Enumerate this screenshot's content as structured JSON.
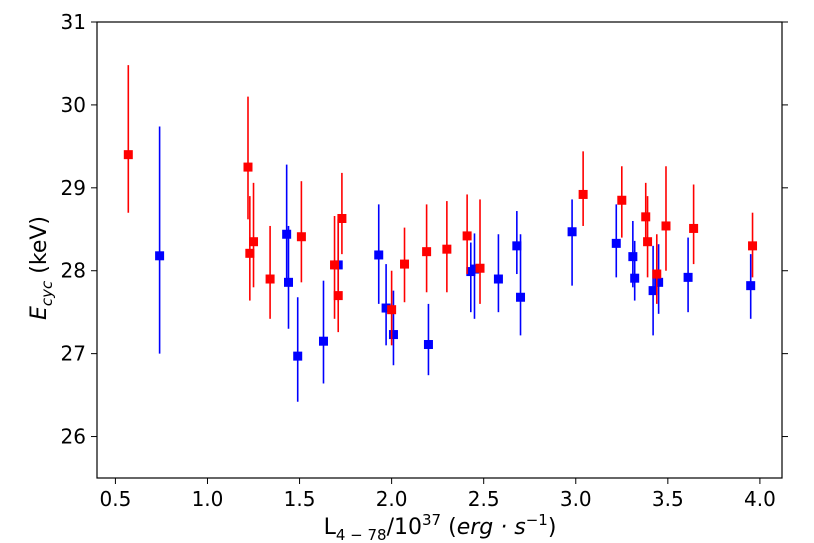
{
  "chart_data": {
    "type": "scatter",
    "xlabel_parts": [
      "L",
      "4 − 78",
      "/10",
      "37",
      " (",
      "erg · s",
      "−1",
      ")"
    ],
    "ylabel_parts": [
      "E",
      "cyc",
      " (keV)"
    ],
    "xlim": [
      0.4,
      4.12
    ],
    "ylim": [
      25.5,
      31.0
    ],
    "xticks": [
      0.5,
      1.0,
      1.5,
      2.0,
      2.5,
      3.0,
      3.5,
      4.0
    ],
    "xtick_labels": [
      "0.5",
      "1.0",
      "1.5",
      "2.0",
      "2.5",
      "3.0",
      "3.5",
      "4.0"
    ],
    "yticks": [
      26,
      27,
      28,
      29,
      30,
      31
    ],
    "ytick_labels": [
      "26",
      "27",
      "28",
      "29",
      "30",
      "31"
    ],
    "grid": false,
    "series": [
      {
        "color": "#0000ff",
        "marker": "square",
        "points": [
          {
            "x": 0.74,
            "y": 28.18,
            "ylo": 27.0,
            "yhi": 29.74
          },
          {
            "x": 1.43,
            "y": 28.44,
            "ylo": 27.9,
            "yhi": 29.28
          },
          {
            "x": 1.44,
            "y": 27.86,
            "ylo": 27.3,
            "yhi": 28.54
          },
          {
            "x": 1.49,
            "y": 26.97,
            "ylo": 26.42,
            "yhi": 27.68
          },
          {
            "x": 1.63,
            "y": 27.15,
            "ylo": 26.64,
            "yhi": 27.88
          },
          {
            "x": 1.71,
            "y": 28.07,
            "ylo": 27.62,
            "yhi": 28.58
          },
          {
            "x": 1.93,
            "y": 28.19,
            "ylo": 27.6,
            "yhi": 28.8
          },
          {
            "x": 1.97,
            "y": 27.55,
            "ylo": 27.1,
            "yhi": 28.08
          },
          {
            "x": 2.01,
            "y": 27.23,
            "ylo": 26.86,
            "yhi": 27.76
          },
          {
            "x": 2.2,
            "y": 27.11,
            "ylo": 26.74,
            "yhi": 27.6
          },
          {
            "x": 2.43,
            "y": 27.99,
            "ylo": 27.5,
            "yhi": 28.34
          },
          {
            "x": 2.45,
            "y": 28.02,
            "ylo": 27.42,
            "yhi": 28.45
          },
          {
            "x": 2.58,
            "y": 27.9,
            "ylo": 27.5,
            "yhi": 28.44
          },
          {
            "x": 2.68,
            "y": 28.3,
            "ylo": 27.96,
            "yhi": 28.72
          },
          {
            "x": 2.7,
            "y": 27.68,
            "ylo": 27.22,
            "yhi": 28.44
          },
          {
            "x": 2.98,
            "y": 28.47,
            "ylo": 27.82,
            "yhi": 28.86
          },
          {
            "x": 3.22,
            "y": 28.33,
            "ylo": 27.92,
            "yhi": 28.8
          },
          {
            "x": 3.31,
            "y": 28.17,
            "ylo": 27.8,
            "yhi": 28.6
          },
          {
            "x": 3.32,
            "y": 27.91,
            "ylo": 27.64,
            "yhi": 28.36
          },
          {
            "x": 3.42,
            "y": 27.76,
            "ylo": 27.22,
            "yhi": 28.3
          },
          {
            "x": 3.45,
            "y": 27.86,
            "ylo": 27.48,
            "yhi": 28.32
          },
          {
            "x": 3.61,
            "y": 27.92,
            "ylo": 27.5,
            "yhi": 28.4
          },
          {
            "x": 3.95,
            "y": 27.82,
            "ylo": 27.42,
            "yhi": 28.2
          }
        ]
      },
      {
        "color": "#ff0000",
        "marker": "square",
        "points": [
          {
            "x": 0.57,
            "y": 29.4,
            "ylo": 28.7,
            "yhi": 30.48
          },
          {
            "x": 1.22,
            "y": 29.25,
            "ylo": 28.62,
            "yhi": 30.1
          },
          {
            "x": 1.23,
            "y": 28.21,
            "ylo": 27.64,
            "yhi": 28.9
          },
          {
            "x": 1.25,
            "y": 28.35,
            "ylo": 27.8,
            "yhi": 29.06
          },
          {
            "x": 1.34,
            "y": 27.9,
            "ylo": 27.42,
            "yhi": 28.54
          },
          {
            "x": 1.51,
            "y": 28.41,
            "ylo": 27.86,
            "yhi": 29.08
          },
          {
            "x": 1.69,
            "y": 28.07,
            "ylo": 27.42,
            "yhi": 28.66
          },
          {
            "x": 1.71,
            "y": 27.7,
            "ylo": 27.26,
            "yhi": 28.62
          },
          {
            "x": 1.73,
            "y": 28.63,
            "ylo": 28.2,
            "yhi": 29.18
          },
          {
            "x": 2.0,
            "y": 27.53,
            "ylo": 27.1,
            "yhi": 28.0
          },
          {
            "x": 2.07,
            "y": 28.08,
            "ylo": 27.62,
            "yhi": 28.52
          },
          {
            "x": 2.19,
            "y": 28.23,
            "ylo": 27.74,
            "yhi": 28.8
          },
          {
            "x": 2.3,
            "y": 28.26,
            "ylo": 27.74,
            "yhi": 28.84
          },
          {
            "x": 2.41,
            "y": 28.42,
            "ylo": 27.96,
            "yhi": 28.92
          },
          {
            "x": 2.48,
            "y": 28.03,
            "ylo": 27.6,
            "yhi": 28.86
          },
          {
            "x": 3.04,
            "y": 28.92,
            "ylo": 28.54,
            "yhi": 29.44
          },
          {
            "x": 3.25,
            "y": 28.85,
            "ylo": 28.4,
            "yhi": 29.26
          },
          {
            "x": 3.38,
            "y": 28.65,
            "ylo": 28.3,
            "yhi": 29.06
          },
          {
            "x": 3.39,
            "y": 28.35,
            "ylo": 27.92,
            "yhi": 28.9
          },
          {
            "x": 3.44,
            "y": 27.96,
            "ylo": 27.6,
            "yhi": 28.44
          },
          {
            "x": 3.49,
            "y": 28.54,
            "ylo": 28.0,
            "yhi": 29.26
          },
          {
            "x": 3.64,
            "y": 28.51,
            "ylo": 28.08,
            "yhi": 29.04
          },
          {
            "x": 3.96,
            "y": 28.3,
            "ylo": 27.92,
            "yhi": 28.7
          }
        ]
      }
    ]
  }
}
